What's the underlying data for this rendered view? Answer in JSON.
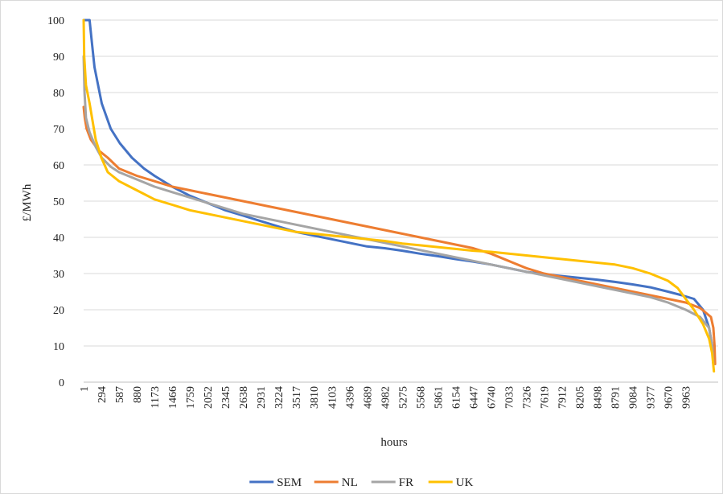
{
  "chart_data": {
    "type": "line",
    "title": "",
    "xlabel": "hours",
    "ylabel": "£/MWh",
    "ylim": [
      0,
      100
    ],
    "yticks": [
      0,
      10,
      20,
      30,
      40,
      50,
      60,
      70,
      80,
      90,
      100
    ],
    "xlim": [
      1,
      10500
    ],
    "xticks": [
      1,
      294,
      587,
      880,
      1173,
      1466,
      1759,
      2052,
      2345,
      2638,
      2931,
      3224,
      3517,
      3810,
      4103,
      4396,
      4689,
      4982,
      5275,
      5568,
      5861,
      6154,
      6447,
      6740,
      7033,
      7326,
      7619,
      7912,
      8205,
      8498,
      8791,
      9084,
      9377,
      9670,
      9963
    ],
    "grid": "horizontal",
    "legend_position": "bottom",
    "series": [
      {
        "name": "SEM",
        "color": "#4472C4",
        "points": [
          [
            1,
            100
          ],
          [
            100,
            100
          ],
          [
            130,
            95
          ],
          [
            180,
            87
          ],
          [
            300,
            77
          ],
          [
            450,
            70
          ],
          [
            600,
            66
          ],
          [
            800,
            62
          ],
          [
            1000,
            59
          ],
          [
            1173,
            57
          ],
          [
            1466,
            54
          ],
          [
            1759,
            51.5
          ],
          [
            2052,
            49.5
          ],
          [
            2345,
            47.5
          ],
          [
            2638,
            46
          ],
          [
            2931,
            44.5
          ],
          [
            3224,
            43
          ],
          [
            3517,
            41.5
          ],
          [
            3810,
            40.5
          ],
          [
            4103,
            39.5
          ],
          [
            4396,
            38.5
          ],
          [
            4689,
            37.5
          ],
          [
            4982,
            37
          ],
          [
            5275,
            36.3
          ],
          [
            5568,
            35.5
          ],
          [
            5861,
            34.8
          ],
          [
            6154,
            34
          ],
          [
            6447,
            33.3
          ],
          [
            6740,
            32.5
          ],
          [
            7033,
            31.5
          ],
          [
            7326,
            30.5
          ],
          [
            7619,
            29.8
          ],
          [
            7912,
            29.3
          ],
          [
            8205,
            28.8
          ],
          [
            8498,
            28.3
          ],
          [
            8791,
            27.7
          ],
          [
            9084,
            27
          ],
          [
            9377,
            26.2
          ],
          [
            9670,
            25
          ],
          [
            9900,
            24
          ],
          [
            10100,
            23
          ],
          [
            10250,
            20
          ],
          [
            10350,
            15
          ],
          [
            10400,
            10
          ],
          [
            10420,
            5
          ]
        ]
      },
      {
        "name": "NL",
        "color": "#ED7D31",
        "points": [
          [
            1,
            76
          ],
          [
            20,
            73
          ],
          [
            50,
            70
          ],
          [
            120,
            67
          ],
          [
            250,
            64
          ],
          [
            400,
            62
          ],
          [
            587,
            59
          ],
          [
            880,
            57
          ],
          [
            1173,
            55.5
          ],
          [
            1466,
            54
          ],
          [
            1759,
            53
          ],
          [
            2052,
            52
          ],
          [
            2345,
            51
          ],
          [
            2638,
            50
          ],
          [
            2931,
            49
          ],
          [
            3224,
            48
          ],
          [
            3517,
            47
          ],
          [
            3810,
            46
          ],
          [
            4103,
            45
          ],
          [
            4396,
            44
          ],
          [
            4689,
            43
          ],
          [
            4982,
            42
          ],
          [
            5275,
            41
          ],
          [
            5568,
            40
          ],
          [
            5861,
            39
          ],
          [
            6154,
            38
          ],
          [
            6447,
            37
          ],
          [
            6740,
            35.5
          ],
          [
            7033,
            33.5
          ],
          [
            7326,
            31.5
          ],
          [
            7619,
            30
          ],
          [
            7912,
            29
          ],
          [
            8205,
            28
          ],
          [
            8498,
            27
          ],
          [
            8791,
            26
          ],
          [
            9084,
            25
          ],
          [
            9377,
            24
          ],
          [
            9670,
            23
          ],
          [
            9963,
            22
          ],
          [
            10200,
            20.5
          ],
          [
            10380,
            18
          ],
          [
            10420,
            15
          ],
          [
            10440,
            10
          ],
          [
            10450,
            5
          ]
        ]
      },
      {
        "name": "FR",
        "color": "#A5A5A5",
        "points": [
          [
            1,
            90
          ],
          [
            15,
            80
          ],
          [
            40,
            73
          ],
          [
            100,
            69
          ],
          [
            200,
            65
          ],
          [
            300,
            62
          ],
          [
            450,
            59.5
          ],
          [
            587,
            58
          ],
          [
            880,
            56
          ],
          [
            1173,
            54
          ],
          [
            1466,
            52.5
          ],
          [
            1759,
            51
          ],
          [
            2052,
            49.5
          ],
          [
            2345,
            48
          ],
          [
            2638,
            46.5
          ],
          [
            2931,
            45.5
          ],
          [
            3224,
            44.5
          ],
          [
            3517,
            43.5
          ],
          [
            3810,
            42.5
          ],
          [
            4103,
            41.5
          ],
          [
            4396,
            40.5
          ],
          [
            4689,
            39.5
          ],
          [
            4982,
            38.5
          ],
          [
            5275,
            37.5
          ],
          [
            5568,
            36.5
          ],
          [
            5861,
            35.5
          ],
          [
            6154,
            34.5
          ],
          [
            6447,
            33.5
          ],
          [
            6740,
            32.5
          ],
          [
            7033,
            31.5
          ],
          [
            7326,
            30.5
          ],
          [
            7619,
            29.5
          ],
          [
            7912,
            28.5
          ],
          [
            8205,
            27.5
          ],
          [
            8498,
            26.5
          ],
          [
            8791,
            25.5
          ],
          [
            9084,
            24.5
          ],
          [
            9377,
            23.5
          ],
          [
            9670,
            22
          ],
          [
            9963,
            20
          ],
          [
            10200,
            18
          ],
          [
            10350,
            15
          ],
          [
            10400,
            10
          ],
          [
            10420,
            5
          ]
        ]
      },
      {
        "name": "UK",
        "color": "#FFC000",
        "points": [
          [
            1,
            100
          ],
          [
            10,
            90
          ],
          [
            40,
            82
          ],
          [
            100,
            77
          ],
          [
            150,
            72
          ],
          [
            200,
            67
          ],
          [
            294,
            62
          ],
          [
            400,
            58
          ],
          [
            587,
            55.5
          ],
          [
            880,
            53
          ],
          [
            1173,
            50.5
          ],
          [
            1466,
            49
          ],
          [
            1759,
            47.5
          ],
          [
            2052,
            46.5
          ],
          [
            2345,
            45.5
          ],
          [
            2638,
            44.5
          ],
          [
            2931,
            43.5
          ],
          [
            3224,
            42.5
          ],
          [
            3517,
            41.5
          ],
          [
            3810,
            41
          ],
          [
            4103,
            40.5
          ],
          [
            4396,
            40
          ],
          [
            4689,
            39.5
          ],
          [
            4982,
            39
          ],
          [
            5275,
            38.3
          ],
          [
            5568,
            37.8
          ],
          [
            5861,
            37.3
          ],
          [
            6154,
            36.8
          ],
          [
            6447,
            36.3
          ],
          [
            6740,
            36
          ],
          [
            7033,
            35.5
          ],
          [
            7326,
            35
          ],
          [
            7619,
            34.5
          ],
          [
            7912,
            34
          ],
          [
            8205,
            33.5
          ],
          [
            8498,
            33
          ],
          [
            8791,
            32.5
          ],
          [
            9084,
            31.5
          ],
          [
            9377,
            30
          ],
          [
            9670,
            28
          ],
          [
            9830,
            26
          ],
          [
            9963,
            23
          ],
          [
            10100,
            20
          ],
          [
            10250,
            16
          ],
          [
            10350,
            12
          ],
          [
            10400,
            8
          ],
          [
            10430,
            3
          ]
        ]
      }
    ]
  }
}
